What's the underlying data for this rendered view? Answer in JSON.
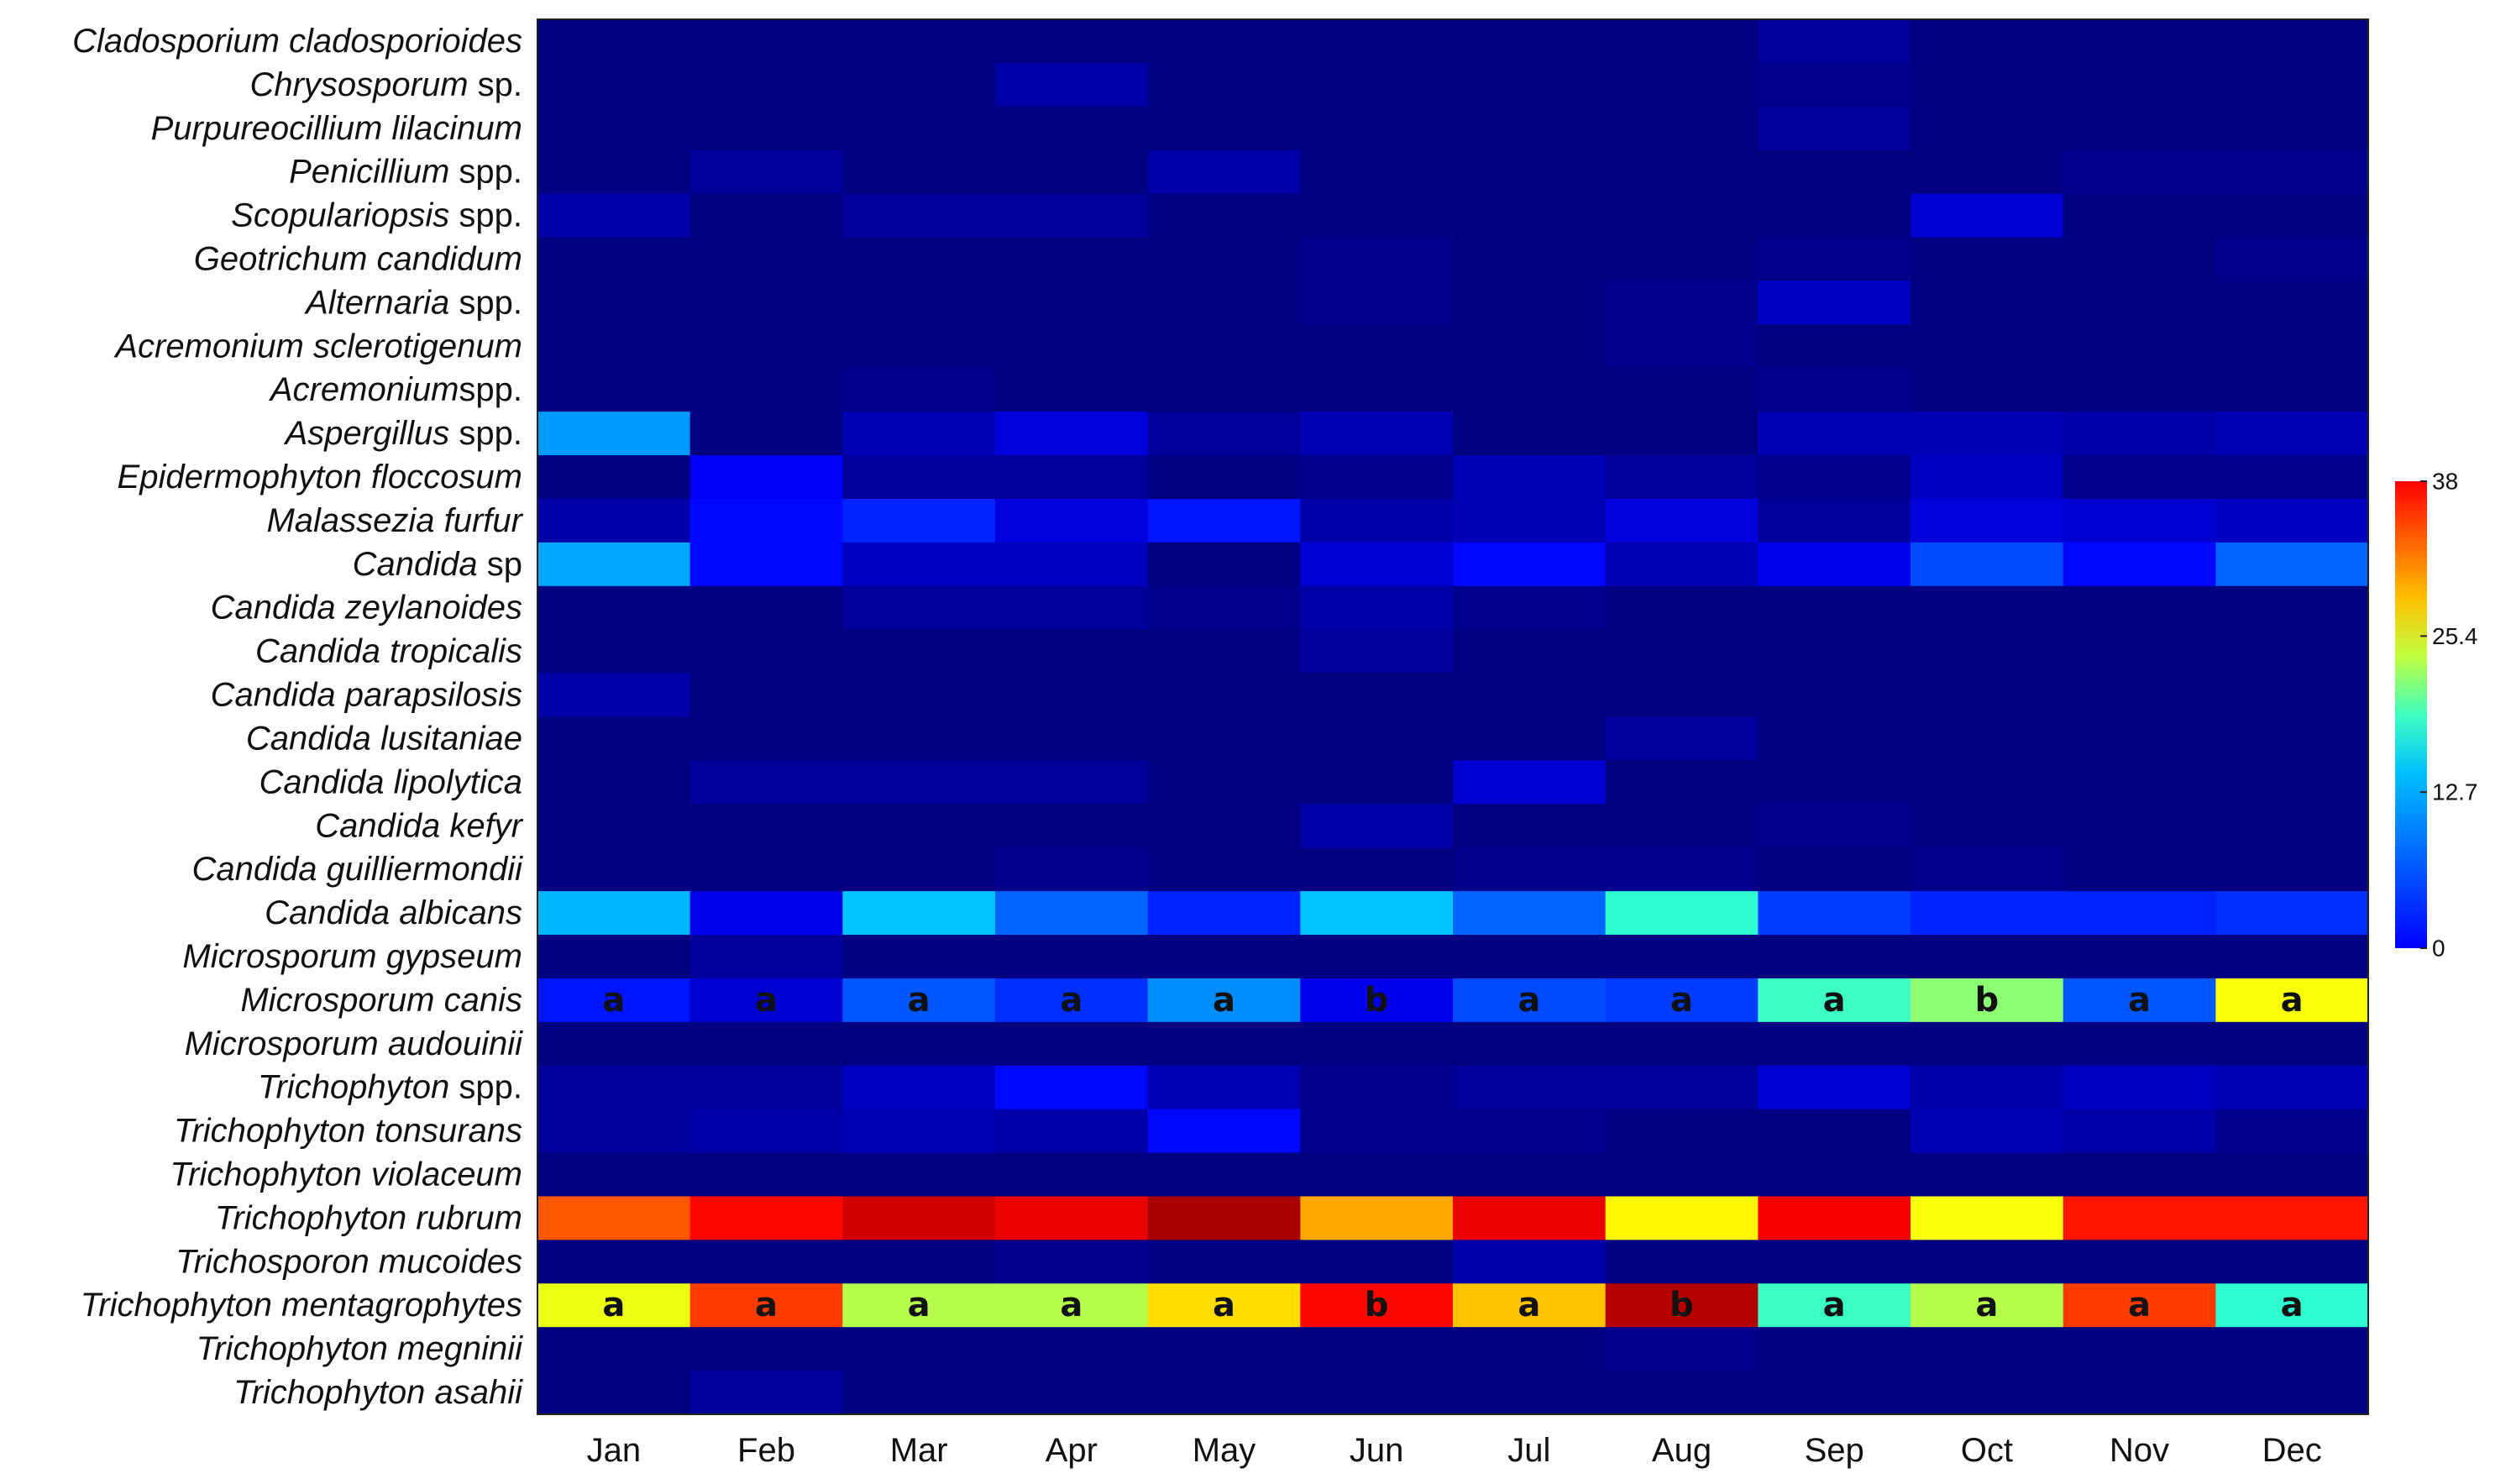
{
  "chart_data": {
    "type": "heatmap",
    "title": "",
    "xlabel": "",
    "ylabel": "",
    "x": [
      "Jan",
      "Feb",
      "Mar",
      "Apr",
      "May",
      "Jun",
      "Jul",
      "Aug",
      "Sep",
      "Oct",
      "Nov",
      "Dec"
    ],
    "y": [
      {
        "italic": "Cladosporium cladosporioides",
        "suffix": ""
      },
      {
        "italic": "Chrysosporum",
        "suffix": " sp."
      },
      {
        "italic": "Purpureocillium lilacinum",
        "suffix": ""
      },
      {
        "italic": "Penicillium",
        "suffix": " spp."
      },
      {
        "italic": "Scopulariopsis",
        "suffix": " spp."
      },
      {
        "italic": "Geotrichum candidum",
        "suffix": ""
      },
      {
        "italic": "Alternaria",
        "suffix": " spp."
      },
      {
        "italic": "Acremonium sclerotigenum",
        "suffix": ""
      },
      {
        "italic": "Acremonium",
        "suffix": "spp."
      },
      {
        "italic": "Aspergillus",
        "suffix": " spp."
      },
      {
        "italic": "Epidermophyton floccosum",
        "suffix": ""
      },
      {
        "italic": "Malassezia furfur",
        "suffix": ""
      },
      {
        "italic": "Candida",
        "suffix": " sp"
      },
      {
        "italic": "Candida zeylanoides",
        "suffix": ""
      },
      {
        "italic": "Candida tropicalis",
        "suffix": ""
      },
      {
        "italic": "Candida parapsilosis",
        "suffix": ""
      },
      {
        "italic": "Candida lusitaniae",
        "suffix": ""
      },
      {
        "italic": "Candida lipolytica",
        "suffix": ""
      },
      {
        "italic": "Candida kefyr",
        "suffix": ""
      },
      {
        "italic": "Candida guilliermondii",
        "suffix": ""
      },
      {
        "italic": "Candida albicans",
        "suffix": ""
      },
      {
        "italic": "Microsporum gypseum",
        "suffix": ""
      },
      {
        "italic": "Microsporum canis",
        "suffix": ""
      },
      {
        "italic": "Microsporum audouinii",
        "suffix": ""
      },
      {
        "italic": "Trichophyton",
        "suffix": " spp."
      },
      {
        "italic": "Trichophyton tonsurans",
        "suffix": ""
      },
      {
        "italic": "Trichophyton violaceum",
        "suffix": ""
      },
      {
        "italic": "Trichophyton rubrum",
        "suffix": ""
      },
      {
        "italic": "Trichosporon mucoides",
        "suffix": ""
      },
      {
        "italic": "Trichophyton mentagrophytes",
        "suffix": ""
      },
      {
        "italic": "Trichophyton megninii",
        "suffix": ""
      },
      {
        "italic": "Trichophyton asahii",
        "suffix": ""
      }
    ],
    "values": [
      [
        0,
        0,
        0,
        0,
        0,
        0,
        0,
        0,
        1,
        0,
        0,
        0
      ],
      [
        0,
        0,
        0,
        1.5,
        0,
        0,
        0,
        0,
        0.5,
        0,
        0,
        0
      ],
      [
        0,
        0,
        0,
        0,
        0,
        0,
        0,
        0,
        1,
        0,
        0,
        0
      ],
      [
        0,
        1,
        0,
        0,
        1.5,
        0,
        0,
        0,
        0,
        0,
        0.5,
        0.5
      ],
      [
        1.5,
        0,
        1,
        1,
        0,
        0,
        0,
        0,
        0,
        3,
        0,
        0
      ],
      [
        0,
        0,
        0,
        0,
        0,
        0.5,
        0,
        0,
        0.5,
        0,
        0,
        0.5
      ],
      [
        0,
        0,
        0,
        0,
        0,
        0.5,
        0,
        0.5,
        2.5,
        0,
        0,
        0
      ],
      [
        0,
        0,
        0,
        0,
        0,
        0,
        0,
        0.5,
        0,
        0,
        0,
        0
      ],
      [
        0,
        0,
        0.5,
        0,
        0,
        0,
        0,
        0,
        0.5,
        0,
        0,
        0
      ],
      [
        10.5,
        0,
        2,
        3.5,
        1,
        2,
        0,
        0,
        2,
        2,
        1.5,
        2
      ],
      [
        0,
        4.5,
        1,
        1,
        0,
        0.5,
        2,
        1,
        0.5,
        2.5,
        0.5,
        0.5
      ],
      [
        1.5,
        5,
        6,
        3.5,
        5.5,
        1.5,
        2,
        3.5,
        1,
        3.5,
        3,
        2.5
      ],
      [
        11,
        5,
        2.5,
        2.5,
        0,
        3,
        5,
        2,
        4,
        7.5,
        5,
        8.5
      ],
      [
        0,
        0,
        1,
        1,
        0.5,
        1.5,
        0.5,
        0,
        0,
        0,
        0,
        0
      ],
      [
        0,
        0,
        0,
        0,
        0,
        1,
        0,
        0,
        0,
        0,
        0,
        0
      ],
      [
        1.5,
        0,
        0,
        0,
        0,
        0,
        0,
        0,
        0,
        0,
        0,
        0
      ],
      [
        0,
        0,
        0,
        0,
        0,
        0,
        0,
        1,
        0,
        0,
        0,
        0
      ],
      [
        0,
        1,
        1,
        1,
        0,
        0,
        3,
        0,
        0,
        0,
        0,
        0
      ],
      [
        0,
        0,
        0,
        0,
        0,
        1.5,
        0,
        0,
        0.5,
        0,
        0,
        0
      ],
      [
        0,
        0,
        0,
        0.5,
        0,
        0,
        0.5,
        0.5,
        0,
        0.5,
        0,
        0
      ],
      [
        11.5,
        4,
        12,
        8.5,
        6,
        12,
        8.5,
        16,
        7,
        6,
        6,
        6.5
      ],
      [
        0,
        1,
        0,
        0,
        0,
        0,
        0,
        0,
        0,
        0,
        0,
        0
      ],
      [
        5.5,
        3,
        8,
        6.5,
        10,
        4,
        7.5,
        7,
        16.5,
        19.5,
        8,
        23.5
      ],
      [
        0,
        0,
        0,
        0,
        0,
        0,
        0,
        0,
        0,
        0,
        0,
        0
      ],
      [
        1,
        1,
        2.5,
        5,
        2,
        0.5,
        1,
        1,
        3,
        1.5,
        2.5,
        2
      ],
      [
        1,
        1.5,
        2,
        1.5,
        5,
        0.5,
        0.5,
        0,
        0,
        2,
        1.5,
        0.5
      ],
      [
        0,
        0,
        0,
        0,
        0,
        0,
        0,
        0,
        0,
        0,
        0,
        0
      ],
      [
        30,
        33,
        35,
        34,
        36.5,
        27,
        34,
        24,
        33.5,
        23.5,
        32.5,
        32.5
      ],
      [
        0,
        0,
        0,
        0.5,
        0,
        0,
        1.5,
        0,
        0,
        0,
        0,
        0
      ],
      [
        23,
        31,
        21,
        21,
        25,
        33,
        26,
        36,
        16.5,
        21,
        31,
        16
      ],
      [
        0,
        0,
        0,
        0,
        0,
        0,
        0,
        0.5,
        0,
        0,
        0,
        0
      ],
      [
        0,
        1,
        0,
        0,
        0,
        0,
        0,
        0,
        0,
        0,
        0,
        0
      ]
    ],
    "annotations": {
      "Microsporum canis": [
        "a",
        "a",
        "a",
        "a",
        "a",
        "b",
        "a",
        "a",
        "a",
        "b",
        "a",
        "a"
      ],
      "Trichophyton mentagrophytes": [
        "a",
        "a",
        "a",
        "a",
        "a",
        "b",
        "a",
        "b",
        "a",
        "a",
        "a",
        "a"
      ]
    },
    "zlim": [
      0,
      38
    ],
    "colorbar": {
      "ticks": [
        0,
        12.7,
        25.4,
        38
      ],
      "tick_labels": [
        "0",
        "12.7",
        "25.4",
        "38"
      ],
      "colormap": "jet",
      "placement": "right"
    },
    "grid": false
  }
}
